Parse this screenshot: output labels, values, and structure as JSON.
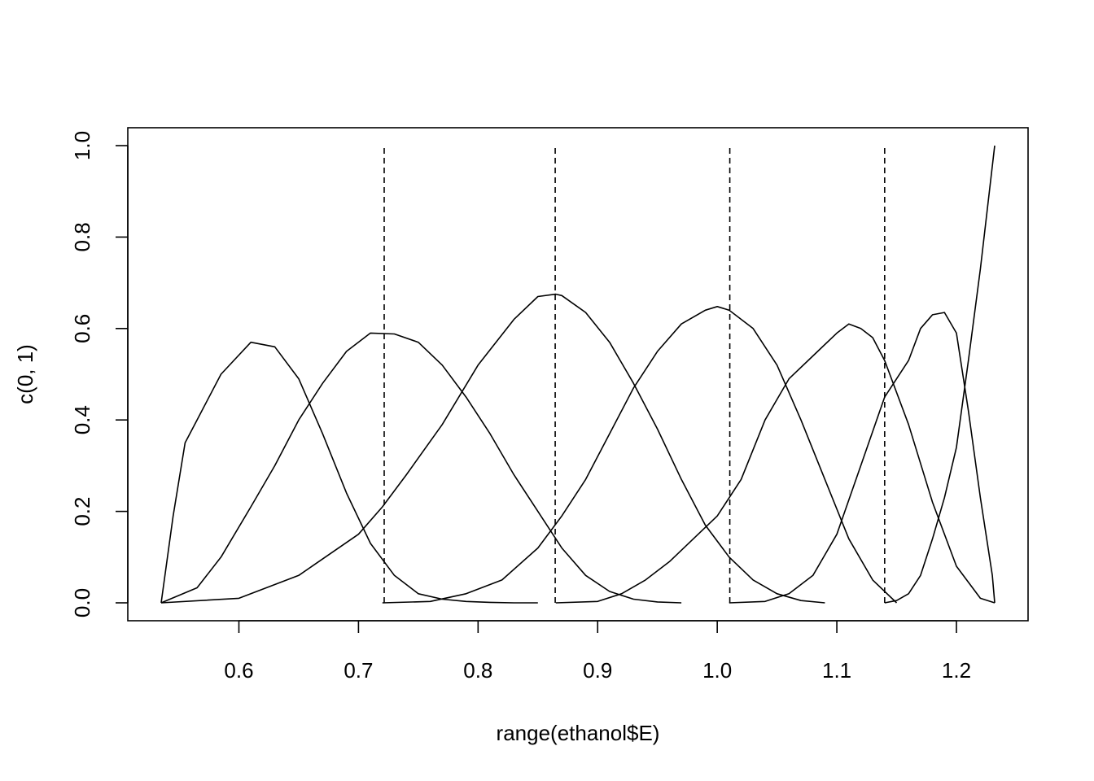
{
  "chart_data": {
    "type": "line",
    "title": "",
    "xlabel": "range(ethanol$E)",
    "ylabel": "c(0, 1)",
    "xlim": [
      0.535,
      1.232
    ],
    "ylim": [
      0,
      1
    ],
    "x_ticks": [
      "0.6",
      "0.7",
      "0.8",
      "0.9",
      "1.0",
      "1.1",
      "1.2"
    ],
    "y_ticks": [
      "0.0",
      "0.2",
      "0.4",
      "0.6",
      "0.8",
      "1.0"
    ],
    "grid": false,
    "legend": "none",
    "knots": [
      0.7215,
      0.8645,
      1.0105,
      1.14
    ],
    "series": [
      {
        "x": [
          0.535,
          0.545,
          0.555,
          0.565,
          0.585,
          0.61,
          0.63,
          0.65,
          0.67,
          0.69,
          0.71,
          0.73,
          0.75,
          0.77,
          0.79,
          0.81,
          0.83,
          0.85
        ],
        "values": [
          0.0,
          0.19,
          0.35,
          0.4,
          0.5,
          0.57,
          0.56,
          0.49,
          0.37,
          0.24,
          0.13,
          0.06,
          0.02,
          0.008,
          0.003,
          0.001,
          0.0,
          0.0
        ]
      },
      {
        "x": [
          0.535,
          0.565,
          0.585,
          0.61,
          0.63,
          0.65,
          0.67,
          0.69,
          0.71,
          0.73,
          0.75,
          0.77,
          0.79,
          0.81,
          0.83,
          0.85,
          0.87,
          0.89,
          0.91,
          0.93,
          0.95,
          0.97
        ],
        "values": [
          0.0,
          0.033,
          0.1,
          0.21,
          0.3,
          0.4,
          0.48,
          0.55,
          0.59,
          0.588,
          0.57,
          0.52,
          0.45,
          0.37,
          0.28,
          0.2,
          0.12,
          0.06,
          0.025,
          0.008,
          0.002,
          0.0
        ]
      },
      {
        "x": [
          0.535,
          0.6,
          0.65,
          0.7,
          0.72,
          0.74,
          0.77,
          0.8,
          0.83,
          0.85,
          0.865,
          0.87,
          0.89,
          0.91,
          0.93,
          0.95,
          0.97,
          0.99,
          1.01,
          1.03,
          1.05,
          1.07,
          1.09
        ],
        "values": [
          0.0,
          0.01,
          0.06,
          0.15,
          0.21,
          0.28,
          0.39,
          0.52,
          0.62,
          0.67,
          0.675,
          0.672,
          0.635,
          0.57,
          0.48,
          0.38,
          0.27,
          0.17,
          0.1,
          0.05,
          0.02,
          0.005,
          0.0
        ]
      },
      {
        "x": [
          0.72,
          0.76,
          0.79,
          0.82,
          0.85,
          0.87,
          0.89,
          0.91,
          0.93,
          0.95,
          0.97,
          0.99,
          1.0,
          1.01,
          1.03,
          1.05,
          1.07,
          1.09,
          1.11,
          1.13,
          1.15
        ],
        "values": [
          0.0,
          0.003,
          0.02,
          0.05,
          0.12,
          0.19,
          0.27,
          0.37,
          0.47,
          0.55,
          0.61,
          0.64,
          0.648,
          0.64,
          0.6,
          0.52,
          0.4,
          0.27,
          0.14,
          0.05,
          0.0
        ]
      },
      {
        "x": [
          0.865,
          0.9,
          0.92,
          0.94,
          0.96,
          0.98,
          1.0,
          1.02,
          1.04,
          1.06,
          1.08,
          1.1,
          1.11,
          1.12,
          1.13,
          1.14,
          1.16,
          1.18,
          1.2,
          1.22,
          1.232
        ],
        "values": [
          0.0,
          0.003,
          0.02,
          0.05,
          0.09,
          0.14,
          0.19,
          0.27,
          0.4,
          0.49,
          0.54,
          0.59,
          0.61,
          0.6,
          0.58,
          0.53,
          0.39,
          0.22,
          0.08,
          0.01,
          0.0
        ]
      },
      {
        "x": [
          1.01,
          1.04,
          1.06,
          1.08,
          1.1,
          1.12,
          1.14,
          1.16,
          1.17,
          1.18,
          1.19,
          1.2,
          1.21,
          1.22,
          1.23,
          1.232
        ],
        "values": [
          0.0,
          0.003,
          0.02,
          0.06,
          0.15,
          0.3,
          0.45,
          0.53,
          0.6,
          0.63,
          0.635,
          0.59,
          0.42,
          0.23,
          0.06,
          0.0
        ]
      },
      {
        "x": [
          1.14,
          1.15,
          1.16,
          1.17,
          1.18,
          1.19,
          1.2,
          1.21,
          1.22,
          1.232
        ],
        "values": [
          0.0,
          0.005,
          0.02,
          0.06,
          0.14,
          0.23,
          0.34,
          0.53,
          0.73,
          1.0
        ]
      }
    ]
  }
}
